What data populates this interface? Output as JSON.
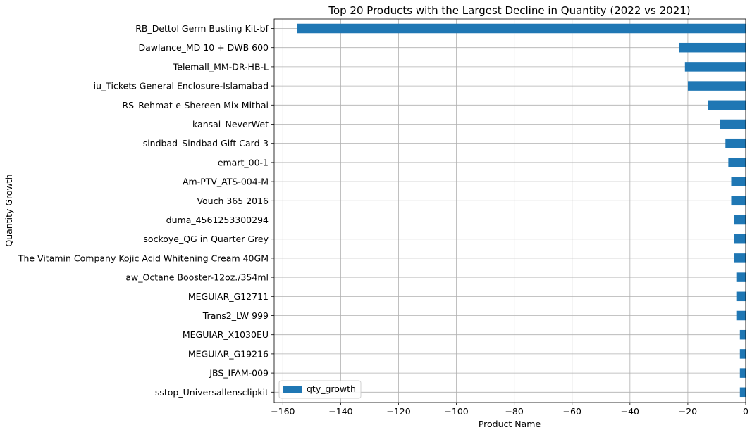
{
  "chart_data": {
    "type": "bar",
    "orientation": "horizontal",
    "title": "Top 20 Products with the Largest Decline in Quantity (2022 vs 2021)",
    "xlabel": "Product Name",
    "ylabel": "Quantity Growth",
    "xlim": [
      -163,
      0
    ],
    "xticks": [
      -160,
      -140,
      -120,
      -100,
      -80,
      -60,
      -40,
      -20,
      0
    ],
    "xtick_labels": [
      "−160",
      "−140",
      "−120",
      "−100",
      "−80",
      "−60",
      "−40",
      "−20",
      "0"
    ],
    "grid": true,
    "legend_position": "lower-left",
    "bar_color": "#1f77b4",
    "series": [
      {
        "name": "qty_growth",
        "values": [
          -155,
          -23,
          -21,
          -20,
          -13,
          -9,
          -7,
          -6,
          -5,
          -5,
          -4,
          -4,
          -4,
          -3,
          -3,
          -3,
          -2,
          -2,
          -2,
          -2
        ]
      }
    ],
    "categories": [
      "RB_Dettol Germ Busting Kit-bf",
      "Dawlance_MD 10 + DWB 600",
      "Telemall_MM-DR-HB-L",
      "iu_Tickets General Enclosure-Islamabad",
      "RS_Rehmat-e-Shereen Mix Mithai",
      "kansai_NeverWet",
      "sindbad_Sindbad Gift Card-3",
      "emart_00-1",
      "Am-PTV_ATS-004-M",
      "Vouch 365 2016",
      "duma_4561253300294",
      "sockoye_QG in Quarter Grey",
      "The Vitamin Company Kojic Acid Whitening Cream 40GM",
      "aw_Octane Booster-12oz./354ml ",
      "MEGUIAR_G12711",
      "Trans2_LW 999 ",
      "MEGUIAR_X1030EU",
      "MEGUIAR_G19216",
      "JBS_IFAM-009",
      "sstop_Universallensclipkit"
    ]
  }
}
